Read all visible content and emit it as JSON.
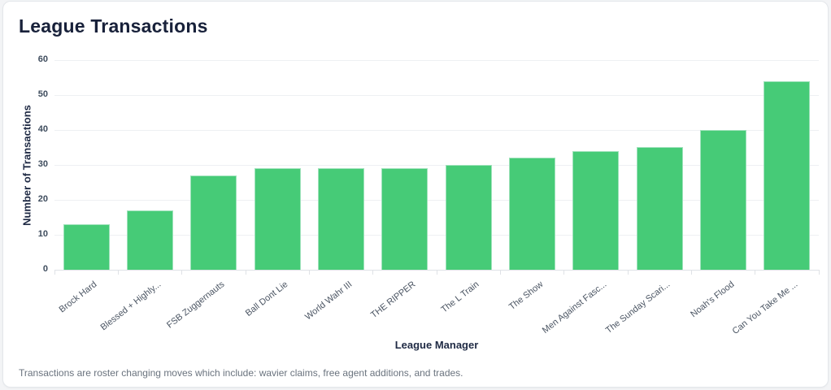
{
  "header": {
    "title": "League Transactions",
    "title_color": "#18213a"
  },
  "chart_data": {
    "type": "bar",
    "title": "League Transactions",
    "xlabel": "League Manager",
    "ylabel": "Number of Transactions",
    "categories": [
      "Brock Hard",
      "Blessed + Highly...",
      "FSB Zuggernauts",
      "Ball Dont Lie",
      "World Wahr III",
      "THE RIPPER",
      "The L Train",
      "The Show",
      "Men Against Fasc...",
      "The Sunday Scari...",
      "Noah's Flood",
      "Can You Take Me ..."
    ],
    "values": [
      13,
      17,
      27,
      29,
      29,
      29,
      30,
      32,
      34,
      35,
      40,
      54
    ],
    "ylim": [
      0,
      60
    ],
    "yticks": [
      0,
      10,
      20,
      30,
      40,
      50,
      60
    ],
    "grid": true,
    "legend": "none",
    "bar_color": "#46cb77",
    "bar_border_color": "#9fe2bb",
    "gridline_color": "#eef0f3",
    "axis_line_color": "#dfe2e6",
    "tick_label_color": "#3f4d5e",
    "category_label_color": "#4b5563",
    "axis_title_color": "#1f2a44"
  },
  "footer": {
    "note": "Transactions are roster changing moves which include: wavier claims, free agent additions, and trades."
  }
}
